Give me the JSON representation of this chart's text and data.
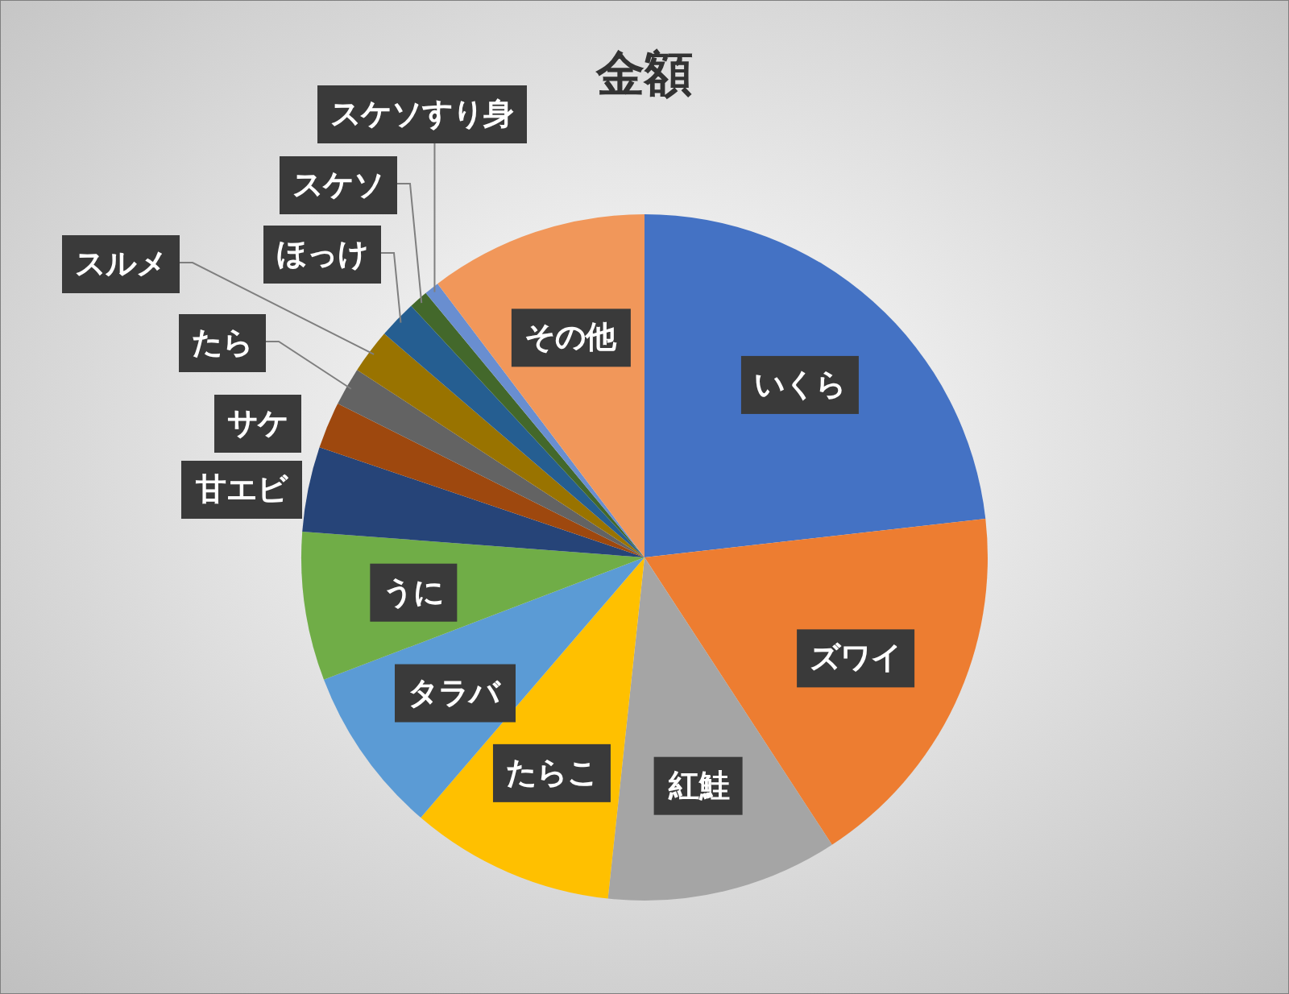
{
  "chart_data": {
    "type": "pie",
    "title": "金額",
    "categories": [
      "いくら",
      "ズワイ",
      "紅鮭",
      "たらこ",
      "タラバ",
      "うに",
      "甘エビ",
      "サケ",
      "たら",
      "スルメ",
      "ほっけ",
      "スケソ",
      "スケソすり身",
      "その他"
    ],
    "values": [
      23.2,
      17.6,
      10.9,
      9.6,
      7.9,
      7.0,
      4.0,
      2.2,
      1.8,
      2.1,
      1.8,
      0.9,
      0.7,
      10.3
    ],
    "colors": [
      "#4472c4",
      "#ed7d31",
      "#a5a5a5",
      "#ffc000",
      "#5b9bd5",
      "#70ad47",
      "#264478",
      "#9e480e",
      "#636363",
      "#997300",
      "#255e91",
      "#43682b",
      "#698ed0",
      "#f1975a"
    ]
  }
}
